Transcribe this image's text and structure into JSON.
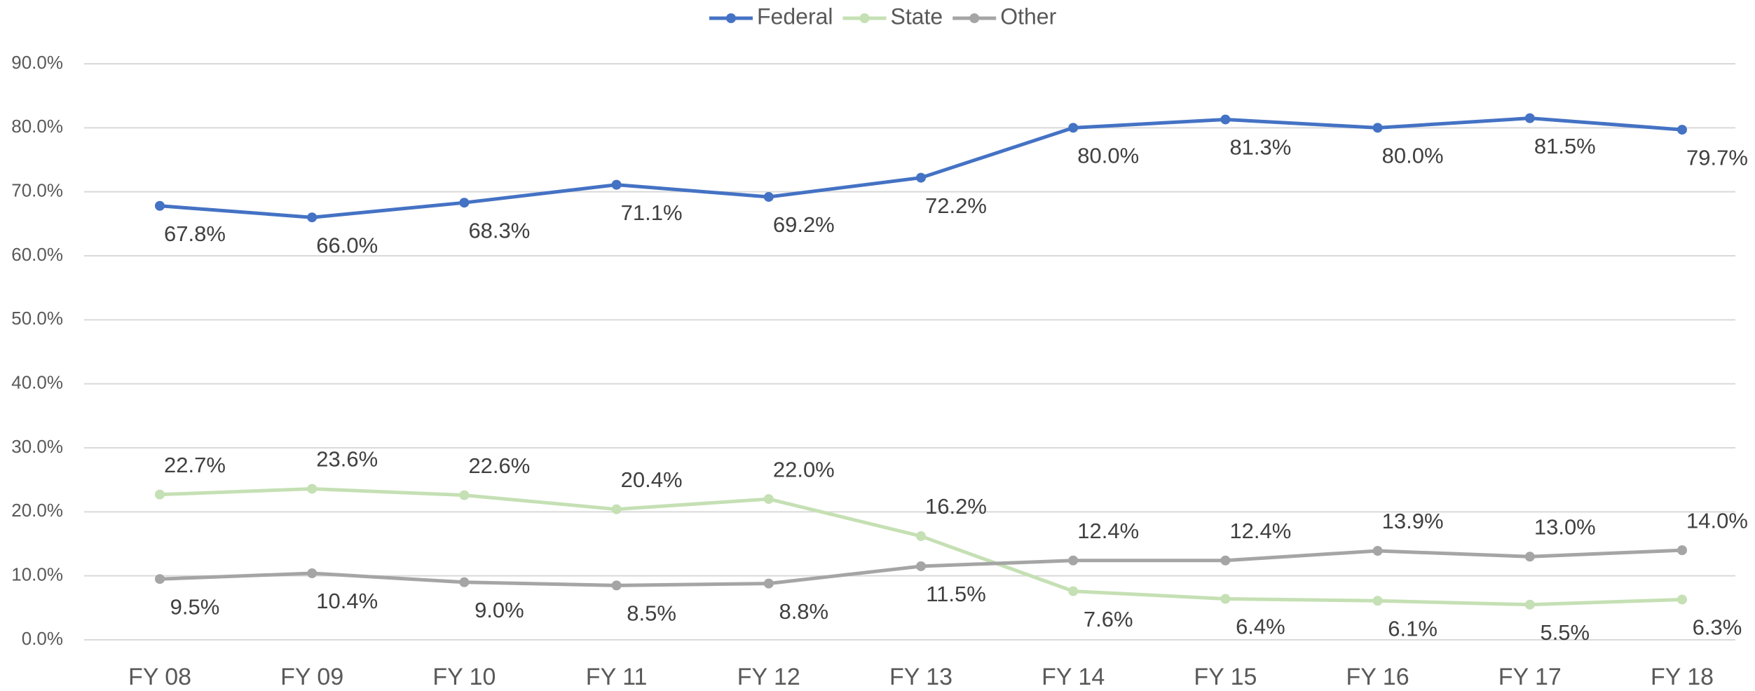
{
  "chart_data": {
    "type": "line",
    "categories": [
      "FY 08",
      "FY 09",
      "FY 10",
      "FY 11",
      "FY 12",
      "FY 13",
      "FY 14",
      "FY 15",
      "FY 16",
      "FY 17",
      "FY 18"
    ],
    "series": [
      {
        "name": "Federal",
        "color": "#4472c4",
        "values": [
          67.8,
          66.0,
          68.3,
          71.1,
          69.2,
          72.2,
          80.0,
          81.3,
          80.0,
          81.5,
          79.7
        ],
        "value_labels": [
          "67.8%",
          "66.0%",
          "68.3%",
          "71.1%",
          "69.2%",
          "72.2%",
          "80.0%",
          "81.3%",
          "80.0%",
          "81.5%",
          "79.7%"
        ]
      },
      {
        "name": "State",
        "color": "#c5e0b4",
        "values": [
          22.7,
          23.6,
          22.6,
          20.4,
          22.0,
          16.2,
          7.6,
          6.4,
          6.1,
          5.5,
          6.3
        ],
        "value_labels": [
          "22.7%",
          "23.6%",
          "22.6%",
          "20.4%",
          "22.0%",
          "16.2%",
          "7.6%",
          "6.4%",
          "6.1%",
          "5.5%",
          "6.3%"
        ]
      },
      {
        "name": "Other",
        "color": "#a5a5a5",
        "values": [
          9.5,
          10.4,
          9.0,
          8.5,
          8.8,
          11.5,
          12.4,
          12.4,
          13.9,
          13.0,
          14.0
        ],
        "value_labels": [
          "9.5%",
          "10.4%",
          "9.0%",
          "8.5%",
          "8.8%",
          "11.5%",
          "12.4%",
          "12.4%",
          "13.9%",
          "13.0%",
          "14.0%"
        ]
      }
    ],
    "ylim": [
      0,
      90
    ],
    "yticks": [
      {
        "value": 0,
        "label": "0.0%"
      },
      {
        "value": 10,
        "label": "10.0%"
      },
      {
        "value": 20,
        "label": "20.0%"
      },
      {
        "value": 30,
        "label": "30.0%"
      },
      {
        "value": 40,
        "label": "40.0%"
      },
      {
        "value": 50,
        "label": "50.0%"
      },
      {
        "value": 60,
        "label": "60.0%"
      },
      {
        "value": 70,
        "label": "70.0%"
      },
      {
        "value": 80,
        "label": "80.0%"
      },
      {
        "value": 90,
        "label": "90.0%"
      }
    ],
    "grid": true,
    "legend": "top"
  }
}
